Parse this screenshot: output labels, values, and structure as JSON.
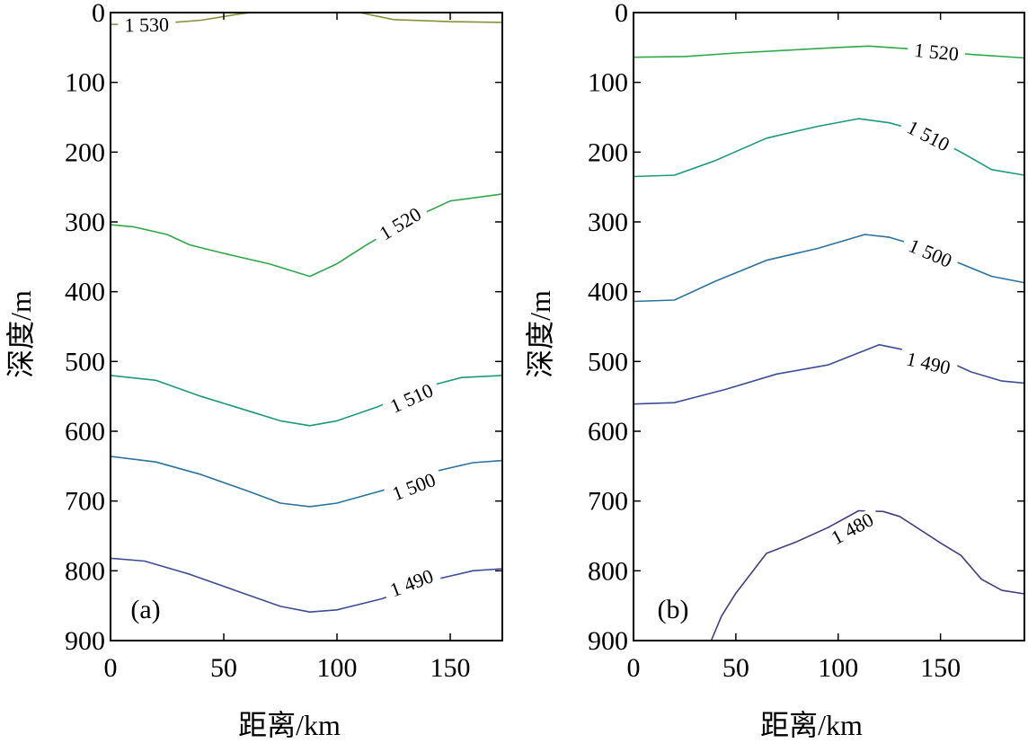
{
  "chart_data": [
    {
      "type": "contour",
      "panel_label": "(a)",
      "xlabel": "距离/km",
      "ylabel": "深度/m",
      "xlim": [
        0,
        173
      ],
      "ylim": [
        0,
        900
      ],
      "y_inverted": true,
      "x_ticks": [
        "0",
        "50",
        "100",
        "150"
      ],
      "y_ticks": [
        "0",
        "100",
        "200",
        "300",
        "400",
        "500",
        "600",
        "700",
        "800",
        "900"
      ],
      "contours": [
        {
          "level": "1 530",
          "color": "#8a9038",
          "points": [
            [
              0,
              17
            ],
            [
              20,
              16
            ],
            [
              40,
              11
            ],
            [
              55,
              3
            ],
            [
              62,
              0
            ],
            [
              110,
              0
            ],
            [
              125,
              10
            ],
            [
              150,
              13
            ],
            [
              173,
              14
            ]
          ],
          "label_at": [
            16,
            18
          ]
        },
        {
          "level": "1 520",
          "color": "#2ea84a",
          "points": [
            [
              0,
              304
            ],
            [
              10,
              307
            ],
            [
              25,
              318
            ],
            [
              35,
              333
            ],
            [
              50,
              345
            ],
            [
              70,
              360
            ],
            [
              88,
              378
            ],
            [
              100,
              360
            ],
            [
              112,
              335
            ],
            [
              130,
              300
            ],
            [
              150,
              270
            ],
            [
              173,
              260
            ]
          ],
          "label_at": [
            128,
            303
          ]
        },
        {
          "level": "1 510",
          "color": "#1a9a7c",
          "points": [
            [
              0,
              520
            ],
            [
              20,
              527
            ],
            [
              40,
              550
            ],
            [
              60,
              570
            ],
            [
              75,
              585
            ],
            [
              88,
              592
            ],
            [
              100,
              585
            ],
            [
              118,
              565
            ],
            [
              135,
              540
            ],
            [
              155,
              523
            ],
            [
              173,
              520
            ]
          ],
          "label_at": [
            133,
            553
          ]
        },
        {
          "level": "1 500",
          "color": "#2a72a0",
          "points": [
            [
              0,
              636
            ],
            [
              20,
              644
            ],
            [
              40,
              662
            ],
            [
              60,
              685
            ],
            [
              75,
              703
            ],
            [
              88,
              708
            ],
            [
              100,
              703
            ],
            [
              120,
              685
            ],
            [
              140,
              660
            ],
            [
              160,
              645
            ],
            [
              173,
              642
            ]
          ],
          "label_at": [
            134,
            680
          ]
        },
        {
          "level": "1 490",
          "color": "#3a4e98",
          "points": [
            [
              0,
              782
            ],
            [
              15,
              786
            ],
            [
              35,
              805
            ],
            [
              55,
              828
            ],
            [
              75,
              851
            ],
            [
              88,
              859
            ],
            [
              100,
              856
            ],
            [
              120,
              840
            ],
            [
              140,
              815
            ],
            [
              160,
              800
            ],
            [
              173,
              797
            ]
          ],
          "label_at": [
            133,
            818
          ]
        }
      ]
    },
    {
      "type": "contour",
      "panel_label": "(b)",
      "xlabel": "距离/km",
      "ylabel": "深度/m",
      "xlim": [
        0,
        191
      ],
      "ylim": [
        0,
        900
      ],
      "y_inverted": true,
      "x_ticks": [
        "0",
        "50",
        "100",
        "150"
      ],
      "y_ticks": [
        "0",
        "100",
        "200",
        "300",
        "400",
        "500",
        "600",
        "700",
        "800",
        "900"
      ],
      "contours": [
        {
          "level": "1 520",
          "color": "#2ea84a",
          "points": [
            [
              0,
              64
            ],
            [
              25,
              63
            ],
            [
              50,
              58
            ],
            [
              75,
              54
            ],
            [
              100,
              50
            ],
            [
              115,
              48
            ],
            [
              140,
              53
            ],
            [
              165,
              60
            ],
            [
              191,
              65
            ]
          ],
          "label_at": [
            148,
            57
          ]
        },
        {
          "level": "1 510",
          "color": "#1a9a7c",
          "points": [
            [
              0,
              235
            ],
            [
              20,
              233
            ],
            [
              40,
              212
            ],
            [
              65,
              180
            ],
            [
              90,
              163
            ],
            [
              110,
              152
            ],
            [
              125,
              158
            ],
            [
              140,
              170
            ],
            [
              160,
              200
            ],
            [
              175,
              225
            ],
            [
              191,
              233
            ]
          ],
          "label_at": [
            144,
            177
          ]
        },
        {
          "level": "1 500",
          "color": "#2a72a0",
          "points": [
            [
              0,
              414
            ],
            [
              20,
              412
            ],
            [
              40,
              385
            ],
            [
              65,
              355
            ],
            [
              90,
              338
            ],
            [
              113,
              318
            ],
            [
              125,
              322
            ],
            [
              140,
              335
            ],
            [
              160,
              360
            ],
            [
              175,
              378
            ],
            [
              191,
              387
            ]
          ],
          "label_at": [
            145,
            345
          ]
        },
        {
          "level": "1 490",
          "color": "#3a4e98",
          "points": [
            [
              0,
              561
            ],
            [
              20,
              559
            ],
            [
              45,
              540
            ],
            [
              70,
              518
            ],
            [
              95,
              505
            ],
            [
              120,
              476
            ],
            [
              135,
              485
            ],
            [
              150,
              495
            ],
            [
              165,
              515
            ],
            [
              180,
              528
            ],
            [
              191,
              531
            ]
          ],
          "label_at": [
            144,
            503
          ]
        },
        {
          "level": "1 480",
          "color": "#4a3a80",
          "points": [
            [
              38,
              900
            ],
            [
              43,
              865
            ],
            [
              50,
              832
            ],
            [
              65,
              775
            ],
            [
              80,
              758
            ],
            [
              95,
              738
            ],
            [
              110,
              714
            ],
            [
              122,
              715
            ],
            [
              130,
              722
            ],
            [
              150,
              760
            ],
            [
              160,
              778
            ],
            [
              170,
              812
            ],
            [
              180,
              828
            ],
            [
              191,
              833
            ]
          ],
          "label_at": [
            107,
            740
          ]
        }
      ]
    }
  ]
}
